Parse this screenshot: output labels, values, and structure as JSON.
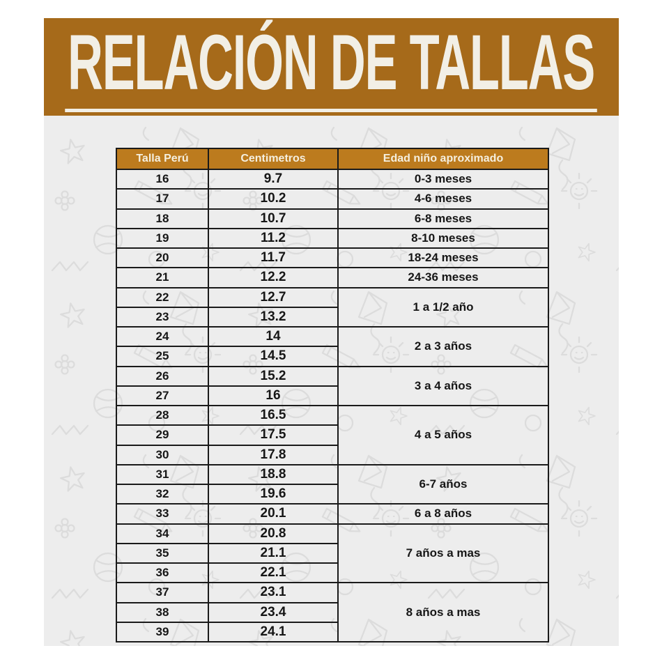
{
  "chart_data": {
    "type": "table",
    "title": "RELACIÓN DE TALLAS",
    "columns": [
      "Talla Perú",
      "Centimetros",
      "Edad niño aproximado"
    ],
    "rows": [
      {
        "talla": "16",
        "cm": "9.7",
        "edad": {
          "label": "0-3 meses",
          "span": 1
        }
      },
      {
        "talla": "17",
        "cm": "10.2",
        "edad": {
          "label": "4-6 meses",
          "span": 1
        }
      },
      {
        "talla": "18",
        "cm": "10.7",
        "edad": {
          "label": "6-8 meses",
          "span": 1
        }
      },
      {
        "talla": "19",
        "cm": "11.2",
        "edad": {
          "label": "8-10 meses",
          "span": 1
        }
      },
      {
        "talla": "20",
        "cm": "11.7",
        "edad": {
          "label": "18-24 meses",
          "span": 1
        }
      },
      {
        "talla": "21",
        "cm": "12.2",
        "edad": {
          "label": "24-36 meses",
          "span": 1
        }
      },
      {
        "talla": "22",
        "cm": "12.7",
        "edad": {
          "label": "1 a 1/2 año",
          "span": 2
        }
      },
      {
        "talla": "23",
        "cm": "13.2"
      },
      {
        "talla": "24",
        "cm": "14",
        "edad": {
          "label": "2 a 3 años",
          "span": 2
        }
      },
      {
        "talla": "25",
        "cm": "14.5"
      },
      {
        "talla": "26",
        "cm": "15.2",
        "edad": {
          "label": "3 a 4 años",
          "span": 2
        }
      },
      {
        "talla": "27",
        "cm": "16"
      },
      {
        "talla": "28",
        "cm": "16.5",
        "edad": {
          "label": "4 a 5 años",
          "span": 3
        }
      },
      {
        "talla": "29",
        "cm": "17.5"
      },
      {
        "talla": "30",
        "cm": "17.8"
      },
      {
        "talla": "31",
        "cm": "18.8",
        "edad": {
          "label": "6-7 años",
          "span": 2
        }
      },
      {
        "talla": "32",
        "cm": "19.6"
      },
      {
        "talla": "33",
        "cm": "20.1",
        "edad": {
          "label": "6 a 8 años",
          "span": 1
        }
      },
      {
        "talla": "34",
        "cm": "20.8",
        "edad": {
          "label": "7 años a mas",
          "span": 3
        }
      },
      {
        "talla": "35",
        "cm": "21.1"
      },
      {
        "talla": "36",
        "cm": "22.1"
      },
      {
        "talla": "37",
        "cm": "23.1",
        "edad": {
          "label": "8 años a mas",
          "span": 3
        }
      },
      {
        "talla": "38",
        "cm": "23.4"
      },
      {
        "talla": "39",
        "cm": "24.1"
      }
    ]
  },
  "colors": {
    "banner_bg": "#A66A1A",
    "table_header_bg": "#BC7B1E",
    "title_text": "#F2EFE6",
    "header_text": "#F5EFDF",
    "body_text": "#161616",
    "grid_line": "#1A1A1A",
    "bg_gray": "#EDEDED",
    "doodle_line": "#DCDCDC"
  }
}
